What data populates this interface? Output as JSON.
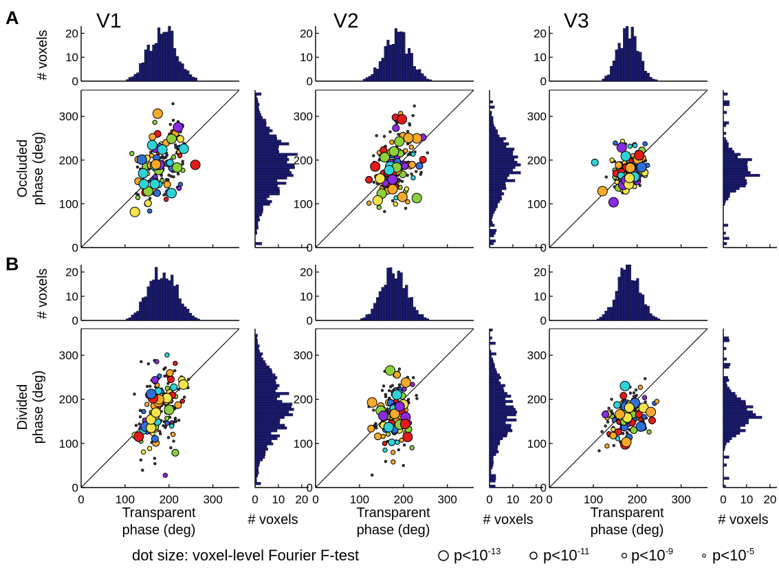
{
  "panels": [
    {
      "letter": "A",
      "ylabel_line1": "Occluded",
      "ylabel_line2": "phase (deg)"
    },
    {
      "letter": "B",
      "ylabel_line1": "Divided",
      "ylabel_line2": "phase (deg)"
    }
  ],
  "areas": [
    "V1",
    "V2",
    "V3"
  ],
  "axes": {
    "xlabel_line1": "Transparent",
    "xlabel_line2": "phase (deg)",
    "hist_label": "# voxels",
    "phase_ticks": [
      "0",
      "100",
      "200",
      "300"
    ],
    "count_ticks": [
      "0",
      "10",
      "20"
    ]
  },
  "legend": {
    "label": "dot size: voxel-level Fourier F-test",
    "items": [
      {
        "base": "p<10",
        "exp": "-13"
      },
      {
        "base": "p<10",
        "exp": "-11"
      },
      {
        "base": "p<10",
        "exp": "-9"
      },
      {
        "base": "p<10",
        "exp": "-5"
      }
    ]
  },
  "colors": {
    "bars": "#1a1a6e",
    "dots": [
      "#e31a1c",
      "#f7a92a",
      "#8bd13c",
      "#2ed3d8",
      "#8a2be2",
      "#2f6fd8",
      "#f2e34a"
    ]
  },
  "chart_data": {
    "type": "scatter",
    "phase_range": [
      0,
      360
    ],
    "count_range": [
      0,
      23
    ],
    "subplots": [
      {
        "panel": "A",
        "area": "V1",
        "center_x": 185,
        "center_y": 190,
        "spread_x": 30,
        "spread_y": 70,
        "top_hist_peak": 23,
        "side_hist_peak": 17
      },
      {
        "panel": "A",
        "area": "V2",
        "center_x": 185,
        "center_y": 185,
        "spread_x": 28,
        "spread_y": 60,
        "top_hist_peak": 20,
        "side_hist_peak": 13
      },
      {
        "panel": "A",
        "area": "V3",
        "center_x": 180,
        "center_y": 175,
        "spread_x": 22,
        "spread_y": 35,
        "top_hist_peak": 22,
        "side_hist_peak": 15
      },
      {
        "panel": "B",
        "area": "V1",
        "center_x": 185,
        "center_y": 180,
        "spread_x": 30,
        "spread_y": 75,
        "top_hist_peak": 23,
        "side_hist_peak": 15
      },
      {
        "panel": "B",
        "area": "V2",
        "center_x": 180,
        "center_y": 170,
        "spread_x": 28,
        "spread_y": 65,
        "top_hist_peak": 21,
        "side_hist_peak": 11
      },
      {
        "panel": "B",
        "area": "V3",
        "center_x": 180,
        "center_y": 165,
        "spread_x": 25,
        "spread_y": 35,
        "top_hist_peak": 22,
        "side_hist_peak": 16
      }
    ]
  }
}
